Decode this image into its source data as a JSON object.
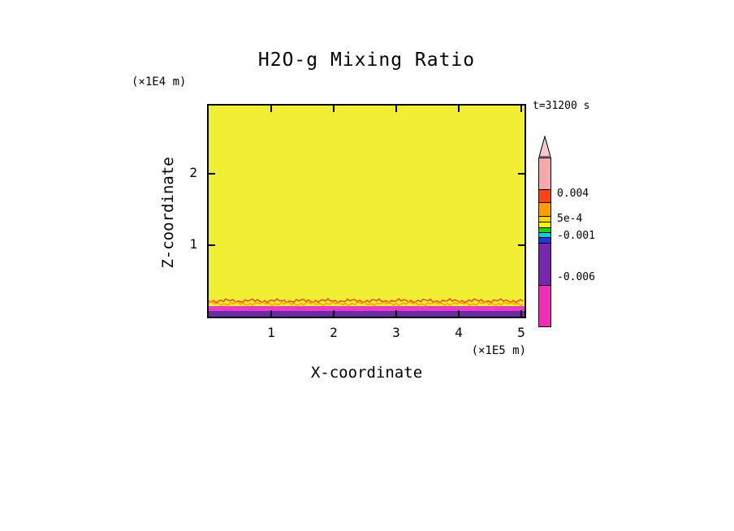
{
  "title": "H2O-g Mixing Ratio",
  "time_label": "t=31200 s",
  "axes": {
    "x_label": "X-coordinate",
    "x_unit": "(×1E5 m)",
    "y_label": "Z-coordinate",
    "y_unit": "(×1E4 m)"
  },
  "colors": {
    "background": "#ffffff",
    "frame": "#000000",
    "field_yellow": "#f0ef33",
    "contour_red": "#f23c28",
    "contour_orange": "#ff9e00",
    "surface_magenta": "#e83cc8",
    "surface_purple": "#6a2ca0"
  },
  "colorbar": {
    "tip_color": "#f6c8c8",
    "segments": [
      {
        "color": "#f4a9a9",
        "h": 38
      },
      {
        "color": "#fa4614",
        "h": 15
      },
      {
        "color": "#ff9e00",
        "h": 16
      },
      {
        "color": "#ffd300",
        "h": 6
      },
      {
        "color": "#f4f400",
        "h": 6
      },
      {
        "color": "#28c814",
        "h": 5
      },
      {
        "color": "#00d2dc",
        "h": 5
      },
      {
        "color": "#1e3cdc",
        "h": 6
      },
      {
        "color": "#7828aa",
        "h": 51
      },
      {
        "color": "#f02db4",
        "h": 50
      }
    ],
    "labels": [
      "0.004",
      "5e-4",
      "-0.001",
      "-0.006"
    ]
  },
  "chart_data": {
    "type": "heatmap",
    "title": "H2O-g Mixing Ratio",
    "xlabel": "X-coordinate",
    "x_unit_scale": "(×1E5 m)",
    "ylabel": "Z-coordinate",
    "y_unit_scale": "(×1E4 m)",
    "x_ticks": [
      1,
      2,
      3,
      4,
      5
    ],
    "y_ticks": [
      1,
      2
    ],
    "xlim": [
      0,
      5.1
    ],
    "ylim": [
      0,
      3.1
    ],
    "time": "t=31200 s",
    "colorbar_tick_labels": [
      "0.004",
      "5e-4",
      "-0.001",
      "-0.006"
    ],
    "legend_position": "right",
    "grid": false,
    "field": "Mixing ratio nearly uniform (yellow band, roughly 5e-4 to 0.004) over the whole domain; thin near-surface layer at z≈0 with wiggly red/orange contour lines above a magenta layer (≈ -0.001 to -0.006) and a purple bottom layer (< -0.006)."
  }
}
